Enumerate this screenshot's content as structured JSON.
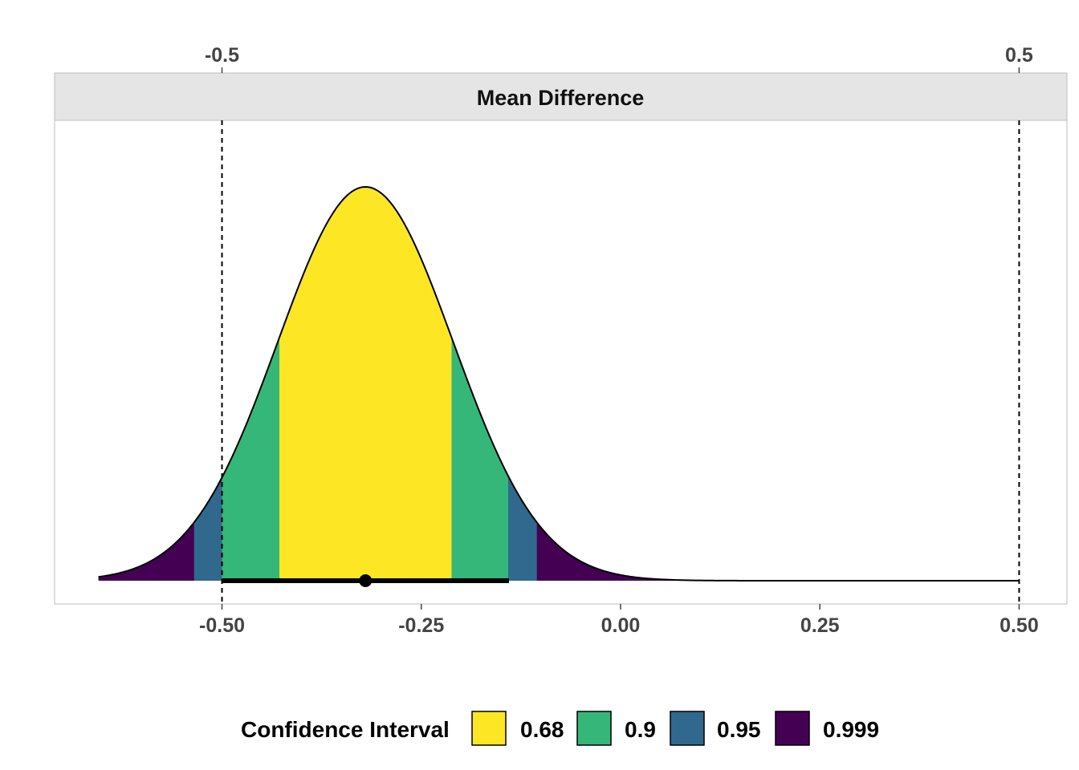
{
  "chart_data": {
    "type": "area",
    "subtype": "confidence-distribution",
    "facet_title": "Mean Difference",
    "x_axis": {
      "range": [
        -0.71,
        0.56
      ],
      "ticks": [
        -0.5,
        -0.25,
        0.0,
        0.25,
        0.5
      ],
      "tick_labels": [
        "-0.50",
        "-0.25",
        "0.00",
        "0.25",
        "0.50"
      ]
    },
    "secondary_x_axis": {
      "position": "top",
      "ticks": [
        -0.5,
        0.5
      ],
      "tick_labels": [
        "-0.5",
        "0.5"
      ]
    },
    "reference_lines": [
      -0.5,
      0.5
    ],
    "distribution": {
      "type": "normal",
      "mean": -0.32,
      "sd": 0.11,
      "x_min": -0.655,
      "x_max": 0.5
    },
    "point_estimate": -0.32,
    "interval_bar": [
      -0.5,
      -0.14
    ],
    "bands": [
      {
        "level": "0.68",
        "lower": -0.428,
        "upper": -0.212,
        "color": "#FDE725"
      },
      {
        "level": "0.9",
        "lower": -0.5,
        "upper": -0.141,
        "color": "#35B779"
      },
      {
        "level": "0.95",
        "lower": -0.535,
        "upper": -0.105,
        "color": "#31688E"
      },
      {
        "level": "0.999",
        "lower": -0.655,
        "upper": 0.5,
        "color": "#440154"
      }
    ],
    "legend": {
      "title": "Confidence Interval",
      "position": "bottom",
      "items": [
        "0.68",
        "0.9",
        "0.95",
        "0.999"
      ]
    },
    "grid": false
  }
}
